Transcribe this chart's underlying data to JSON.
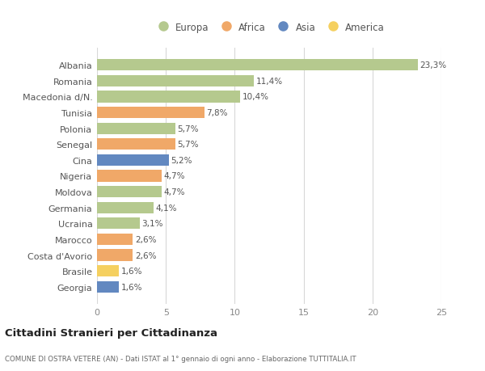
{
  "countries": [
    "Albania",
    "Romania",
    "Macedonia d/N.",
    "Tunisia",
    "Polonia",
    "Senegal",
    "Cina",
    "Nigeria",
    "Moldova",
    "Germania",
    "Ucraina",
    "Marocco",
    "Costa d'Avorio",
    "Brasile",
    "Georgia"
  ],
  "values": [
    23.3,
    11.4,
    10.4,
    7.8,
    5.7,
    5.7,
    5.2,
    4.7,
    4.7,
    4.1,
    3.1,
    2.6,
    2.6,
    1.6,
    1.6
  ],
  "labels": [
    "23,3%",
    "11,4%",
    "10,4%",
    "7,8%",
    "5,7%",
    "5,7%",
    "5,2%",
    "4,7%",
    "4,7%",
    "4,1%",
    "3,1%",
    "2,6%",
    "2,6%",
    "1,6%",
    "1,6%"
  ],
  "continents": [
    "Europa",
    "Europa",
    "Europa",
    "Africa",
    "Europa",
    "Africa",
    "Asia",
    "Africa",
    "Europa",
    "Europa",
    "Europa",
    "Africa",
    "Africa",
    "America",
    "Asia"
  ],
  "colors": {
    "Europa": "#b5c98e",
    "Africa": "#f0a868",
    "Asia": "#6288c0",
    "America": "#f5d060"
  },
  "legend_order": [
    "Europa",
    "Africa",
    "Asia",
    "America"
  ],
  "title": "Cittadini Stranieri per Cittadinanza",
  "subtitle": "COMUNE DI OSTRA VETERE (AN) - Dati ISTAT al 1° gennaio di ogni anno - Elaborazione TUTTITALIA.IT",
  "xlim": [
    0,
    25
  ],
  "xticks": [
    0,
    5,
    10,
    15,
    20,
    25
  ],
  "background_color": "#ffffff",
  "grid_color": "#d8d8d8"
}
